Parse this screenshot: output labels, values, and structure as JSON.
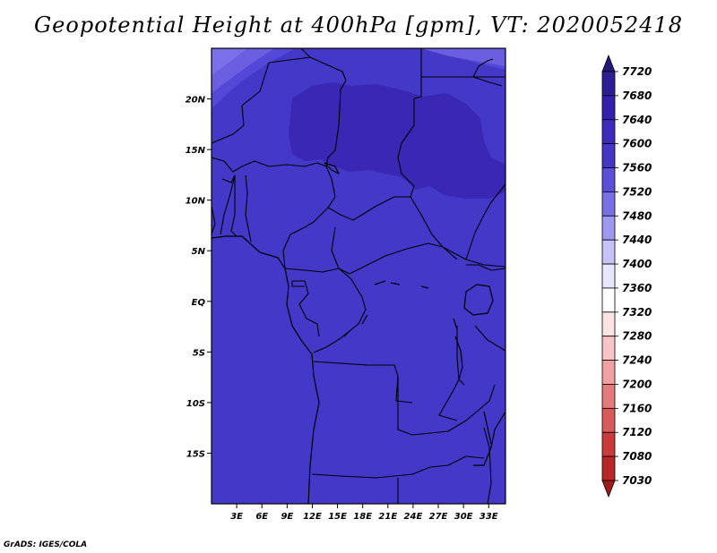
{
  "title": "Geopotential Height at 400hPa [gpm], VT: 2020052418",
  "credit": "GrADS: IGES/COLA",
  "map": {
    "lat_range": [
      -20,
      25
    ],
    "lon_range": [
      0,
      35
    ],
    "lat_ticks": [
      {
        "value": 20,
        "label": "20N"
      },
      {
        "value": 15,
        "label": "15N"
      },
      {
        "value": 10,
        "label": "10N"
      },
      {
        "value": 5,
        "label": "5N"
      },
      {
        "value": 0,
        "label": "EQ"
      },
      {
        "value": -5,
        "label": "5S"
      },
      {
        "value": -10,
        "label": "10S"
      },
      {
        "value": -15,
        "label": "15S"
      }
    ],
    "lon_ticks": [
      {
        "value": 3,
        "label": "3E"
      },
      {
        "value": 6,
        "label": "6E"
      },
      {
        "value": 9,
        "label": "9E"
      },
      {
        "value": 12,
        "label": "12E"
      },
      {
        "value": 15,
        "label": "15E"
      },
      {
        "value": 18,
        "label": "18E"
      },
      {
        "value": 21,
        "label": "21E"
      },
      {
        "value": 24,
        "label": "24E"
      },
      {
        "value": 27,
        "label": "27E"
      },
      {
        "value": 30,
        "label": "30E"
      },
      {
        "value": 33,
        "label": "33E"
      }
    ]
  },
  "colorbar": {
    "labels": [
      "7720",
      "7680",
      "7640",
      "7600",
      "7560",
      "7520",
      "7480",
      "7440",
      "7400",
      "7360",
      "7320",
      "7280",
      "7240",
      "7200",
      "7160",
      "7120",
      "7080",
      "7030"
    ],
    "colors": [
      "#241878",
      "#2d1e96",
      "#3520ae",
      "#3d2bbd",
      "#4536c6",
      "#5a4fd6",
      "#7a70e6",
      "#9f98f0",
      "#c7c3f8",
      "#e8e6fc",
      "#ffffff",
      "#fce4e4",
      "#f7c5c5",
      "#f0a0a0",
      "#e47b7b",
      "#d95a5a",
      "#cc3b3b",
      "#b82828",
      "#9e1b1b"
    ]
  },
  "fields": {
    "base_color": "#4338c8",
    "high_color": "#3a27b4",
    "low_color": "#5448d8",
    "lowest_color": "#6b5fe0",
    "edge_color": "#7b70ea"
  }
}
